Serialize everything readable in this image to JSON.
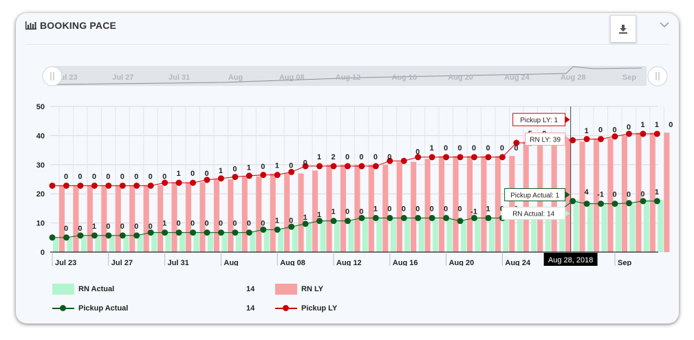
{
  "widget": {
    "title": "BOOKING PACE",
    "title_icon": "bar-chart-icon",
    "download_icon": "download-icon",
    "collapse_icon": "chevron-down-icon"
  },
  "navigator": {
    "labels": [
      "Jul 23",
      "Jul 27",
      "Jul 31",
      "Aug",
      "Aug 08",
      "Aug 12",
      "Aug 16",
      "Aug 20",
      "Aug 24",
      "Aug 28",
      "Sep"
    ]
  },
  "chart_data": {
    "type": "bar",
    "x_tick_labels": [
      "Jul 23",
      "Jul 27",
      "Jul 31",
      "Aug",
      "Aug 08",
      "Aug 12",
      "Aug 16",
      "Aug 20",
      "Aug 24",
      "Aug 28",
      "Sep"
    ],
    "y_ticks": [
      0,
      10,
      20,
      30,
      40,
      50
    ],
    "ylim": [
      0,
      50
    ],
    "grid": true,
    "series": [
      {
        "name": "RN Actual",
        "type": "bar",
        "color": "#b3f5cf",
        "values": [
          5,
          5,
          6,
          6,
          6,
          6,
          6,
          7,
          7,
          7,
          7,
          7,
          7,
          7,
          7,
          8,
          8,
          9,
          10,
          11,
          11,
          11,
          12,
          12,
          12,
          12,
          12,
          12,
          12,
          11,
          12,
          12,
          12,
          13,
          13,
          14,
          14,
          18,
          17,
          17,
          17,
          17,
          18,
          18
        ]
      },
      {
        "name": "RN LY",
        "type": "bar",
        "color": "#f7a1a3",
        "values": [
          23,
          23,
          23,
          23,
          23,
          23,
          23,
          23,
          24,
          24,
          24,
          25,
          25,
          26,
          26,
          27,
          27,
          27,
          28,
          30,
          30,
          30,
          30,
          30,
          31,
          31,
          32,
          33,
          33,
          33,
          33,
          33,
          33,
          38,
          38,
          39,
          39,
          38,
          39,
          39,
          40,
          41,
          41,
          41
        ]
      },
      {
        "name": "Pickup Actual",
        "type": "line",
        "color": "#0b5b1e",
        "values": [
          5,
          5,
          5.7,
          5.7,
          5.7,
          5.7,
          5.7,
          6.7,
          6.7,
          6.7,
          6.7,
          6.7,
          6.7,
          6.7,
          6.7,
          7.7,
          7.7,
          8.7,
          9.7,
          10.7,
          10.7,
          10.7,
          11.7,
          11.7,
          11.7,
          11.7,
          11.7,
          11.7,
          11.7,
          10.7,
          11.7,
          11.7,
          11.7,
          12.5,
          13.3,
          14,
          14,
          17.5,
          16.6,
          16.6,
          16.6,
          16.8,
          17.5,
          17.5
        ],
        "data_labels": [
          "0",
          "0",
          "1",
          "0",
          "0",
          "0",
          "0",
          "1",
          "0",
          "0",
          "0",
          "0",
          "0",
          "0",
          "0",
          "1",
          "0",
          "1",
          "1",
          "1",
          "0",
          "0",
          "1",
          "0",
          "0",
          "0",
          "0",
          "0",
          "0",
          "-1",
          "1",
          "0",
          "0",
          "",
          "",
          "",
          "",
          "4",
          "-1",
          "0",
          "0",
          "0",
          "1",
          ""
        ]
      },
      {
        "name": "Pickup LY",
        "type": "line",
        "color": "#c8000a",
        "values": [
          22.8,
          22.8,
          22.8,
          22.8,
          22.8,
          22.8,
          22.8,
          22.8,
          23.8,
          23.8,
          23.8,
          24.8,
          25.3,
          25.8,
          26.2,
          26.5,
          26.5,
          27.5,
          29.5,
          29.5,
          29.5,
          29.5,
          29.5,
          29.5,
          31.3,
          31.3,
          32.6,
          32.6,
          32.6,
          32.6,
          32.6,
          32.6,
          32.6,
          37.5,
          37.5,
          38.8,
          38.8,
          38.4,
          38.8,
          38.8,
          39.7,
          40.6,
          40.6,
          40.6
        ],
        "data_labels": [
          "0",
          "0",
          "0",
          "0",
          "0",
          "0",
          "0",
          "0",
          "1",
          "0",
          "0",
          "1",
          "0",
          "1",
          "0",
          "1",
          "0",
          "0",
          "1",
          "2",
          "0",
          "0",
          "0",
          "0",
          "",
          "0",
          "1",
          "0",
          "0",
          "0",
          "0",
          "0",
          "0",
          "5",
          "0",
          "",
          "",
          "1",
          "0",
          "0",
          "0",
          "1",
          "1",
          "0"
        ]
      }
    ],
    "crosshair_date": "Aug 28, 2018",
    "tooltips": [
      {
        "label": "Pickup LY: 1"
      },
      {
        "label": "RN LY: 39"
      },
      {
        "label": "Pickup Actual: 1"
      },
      {
        "label": "RN Actual: 14"
      }
    ]
  },
  "legend": {
    "items": [
      {
        "label": "RN Actual",
        "value": "14",
        "color": "#b3f5cf",
        "kind": "bar"
      },
      {
        "label": "RN LY",
        "value": "",
        "color": "#f7a1a3",
        "kind": "bar"
      },
      {
        "label": "Pickup Actual",
        "value": "14",
        "color": "#0b5b1e",
        "kind": "line"
      },
      {
        "label": "Pickup LY",
        "value": "",
        "color": "#c8000a",
        "kind": "line"
      }
    ]
  }
}
